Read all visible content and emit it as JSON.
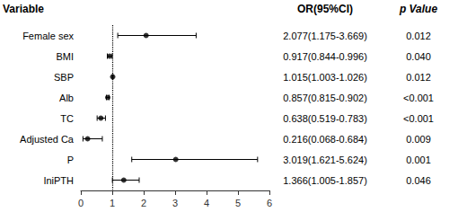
{
  "chart_data": {
    "type": "forest",
    "category_header": "Variable",
    "categories": [
      "Female sex",
      "BMI",
      "SBP",
      "Alb",
      "TC",
      "Adjusted Ca",
      "P",
      "IniPTH"
    ],
    "values": [
      2.077,
      0.917,
      1.015,
      0.857,
      0.638,
      0.216,
      3.019,
      1.366
    ],
    "ci_low": [
      1.175,
      0.844,
      1.003,
      0.815,
      0.519,
      0.068,
      1.621,
      1.005
    ],
    "ci_high": [
      3.669,
      0.996,
      1.026,
      0.902,
      0.783,
      0.684,
      5.624,
      1.857
    ],
    "columns": [
      {
        "header": "OR(95%CI)",
        "labels": [
          "2.077(1.175-3.669)",
          "0.917(0.844-0.996)",
          "1.015(1.003-1.026)",
          "0.857(0.815-0.902)",
          "0.638(0.519-0.783)",
          "0.216(0.068-0.684)",
          "3.019(1.621-5.624)",
          "1.366(1.005-1.857)"
        ]
      },
      {
        "header": "p Value",
        "labels": [
          "0.012",
          "0.040",
          "0.012",
          "<0.001",
          "<0.001",
          "0.009",
          "0.001",
          "0.046"
        ]
      }
    ],
    "reference_line": 1.0,
    "xlim": [
      0,
      6
    ],
    "xticks": [
      0,
      1,
      2,
      3,
      4,
      5,
      6
    ],
    "color": "#000000",
    "grid": false
  }
}
